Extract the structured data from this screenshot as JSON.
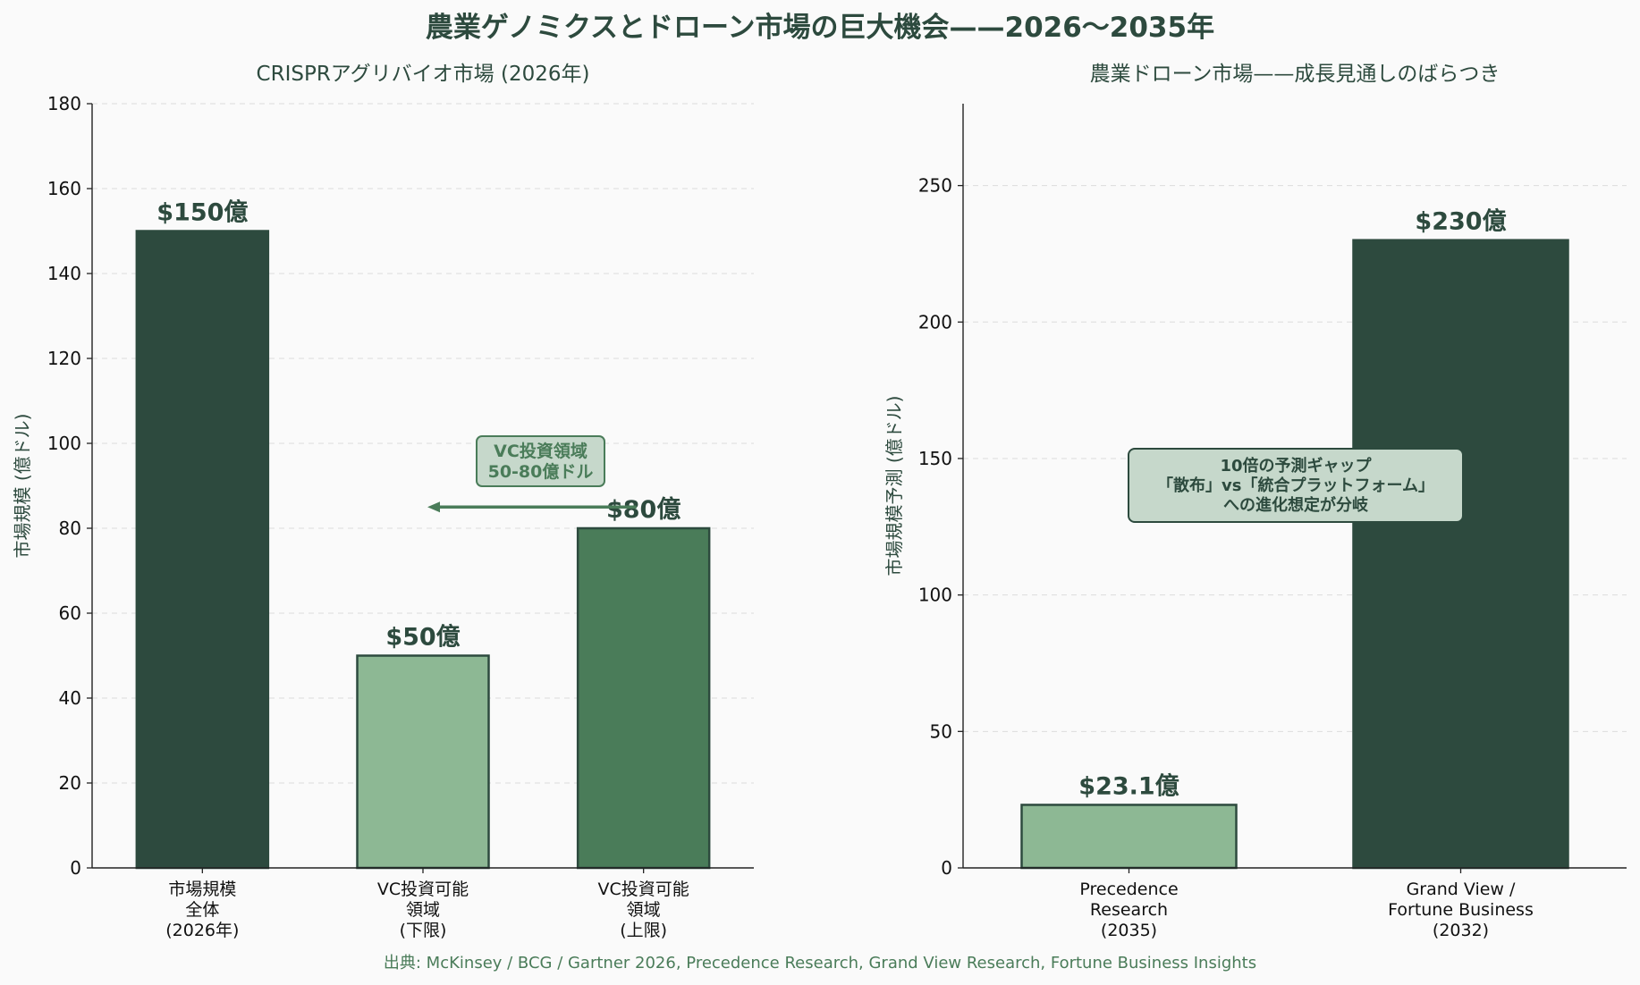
{
  "figure": {
    "title": "農業ゲノミクスとドローン市場の巨大機会——2026〜2035年",
    "source": "出典: McKinsey / BCG / Gartner 2026, Precedence Research, Grand View Research, Fortune Business Insights"
  },
  "colors": {
    "dark": "#2d4a3e",
    "light": "#8db894",
    "mid": "#4a7c59",
    "annot_fill": "#c6d8cb",
    "background": "#fafafa"
  },
  "chart_data": [
    {
      "type": "bar",
      "title": "CRISPRアグリバイオ市場 (2026年)",
      "ylabel": "市場規模 (億ドル)",
      "xlabel": "",
      "ylim": [
        0,
        180
      ],
      "yticks": [
        0,
        20,
        40,
        60,
        80,
        100,
        120,
        140,
        160,
        180
      ],
      "grid": true,
      "categories": [
        [
          "市場規模",
          "全体",
          "(2026年)"
        ],
        [
          "VC投資可能",
          "領域",
          "(下限)"
        ],
        [
          "VC投資可能",
          "領域",
          "(上限)"
        ]
      ],
      "values": [
        150,
        50,
        80
      ],
      "value_labels": [
        "$150億",
        "$50億",
        "$80億"
      ],
      "bar_colors": [
        "dark",
        "light",
        "mid"
      ],
      "annotation": {
        "lines": [
          "VC投資領域",
          "50-80億ドル"
        ],
        "arrow_from_y": 85,
        "arrow_to_y": 85,
        "arrow": "from bar 3 pointing left toward bar 2"
      }
    },
    {
      "type": "bar",
      "title": "農業ドローン市場——成長見通しのばらつき",
      "ylabel": "市場規模予測 (億ドル)",
      "xlabel": "",
      "ylim": [
        0,
        280
      ],
      "yticks": [
        0,
        50,
        100,
        150,
        200,
        250
      ],
      "grid": true,
      "categories": [
        [
          "Precedence",
          "Research",
          "(2035)"
        ],
        [
          "Grand View /",
          "Fortune Business",
          "(2032)"
        ]
      ],
      "values": [
        23.1,
        230
      ],
      "value_labels": [
        "$23.1億",
        "$230億"
      ],
      "bar_colors": [
        "light",
        "dark"
      ],
      "annotation": {
        "lines": [
          "10倍の予測ギャップ",
          "「散布」vs「統合プラットフォーム」",
          "への進化想定が分岐"
        ],
        "at_y": 140
      }
    }
  ]
}
